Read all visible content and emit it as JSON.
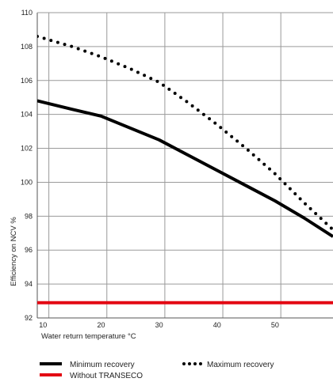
{
  "chart_data": {
    "type": "line",
    "xlabel": "Water return temperature °C",
    "ylabel": "Efficiency on NCV %",
    "xlim": [
      9,
      60
    ],
    "ylim": [
      92,
      110
    ],
    "x_ticks": [
      "10",
      "20",
      "30",
      "40",
      "50"
    ],
    "y_ticks": [
      "92",
      "94",
      "96",
      "98",
      "100",
      "102",
      "104",
      "106",
      "108",
      "110"
    ],
    "grid": true,
    "legend_position": "bottom",
    "series": [
      {
        "name": "Minimum recovery",
        "color": "#000000",
        "style": "solid",
        "x": [
          9,
          15,
          20,
          25,
          30,
          35,
          40,
          45,
          50,
          55,
          60
        ],
        "y": [
          104.8,
          104.3,
          103.9,
          103.2,
          102.5,
          101.6,
          100.7,
          99.8,
          98.9,
          97.9,
          96.8
        ]
      },
      {
        "name": "Maximum recovery",
        "color": "#000000",
        "style": "dotted",
        "x": [
          9,
          15,
          20,
          25,
          30,
          35,
          40,
          45,
          50,
          55,
          60
        ],
        "y": [
          108.6,
          108.0,
          107.4,
          106.7,
          105.9,
          104.7,
          103.4,
          102.0,
          100.5,
          98.8,
          97.2
        ]
      },
      {
        "name": "Without TRANSECO",
        "color": "#e30613",
        "style": "solid",
        "x": [
          9,
          60
        ],
        "y": [
          92.9,
          92.9
        ]
      }
    ]
  }
}
